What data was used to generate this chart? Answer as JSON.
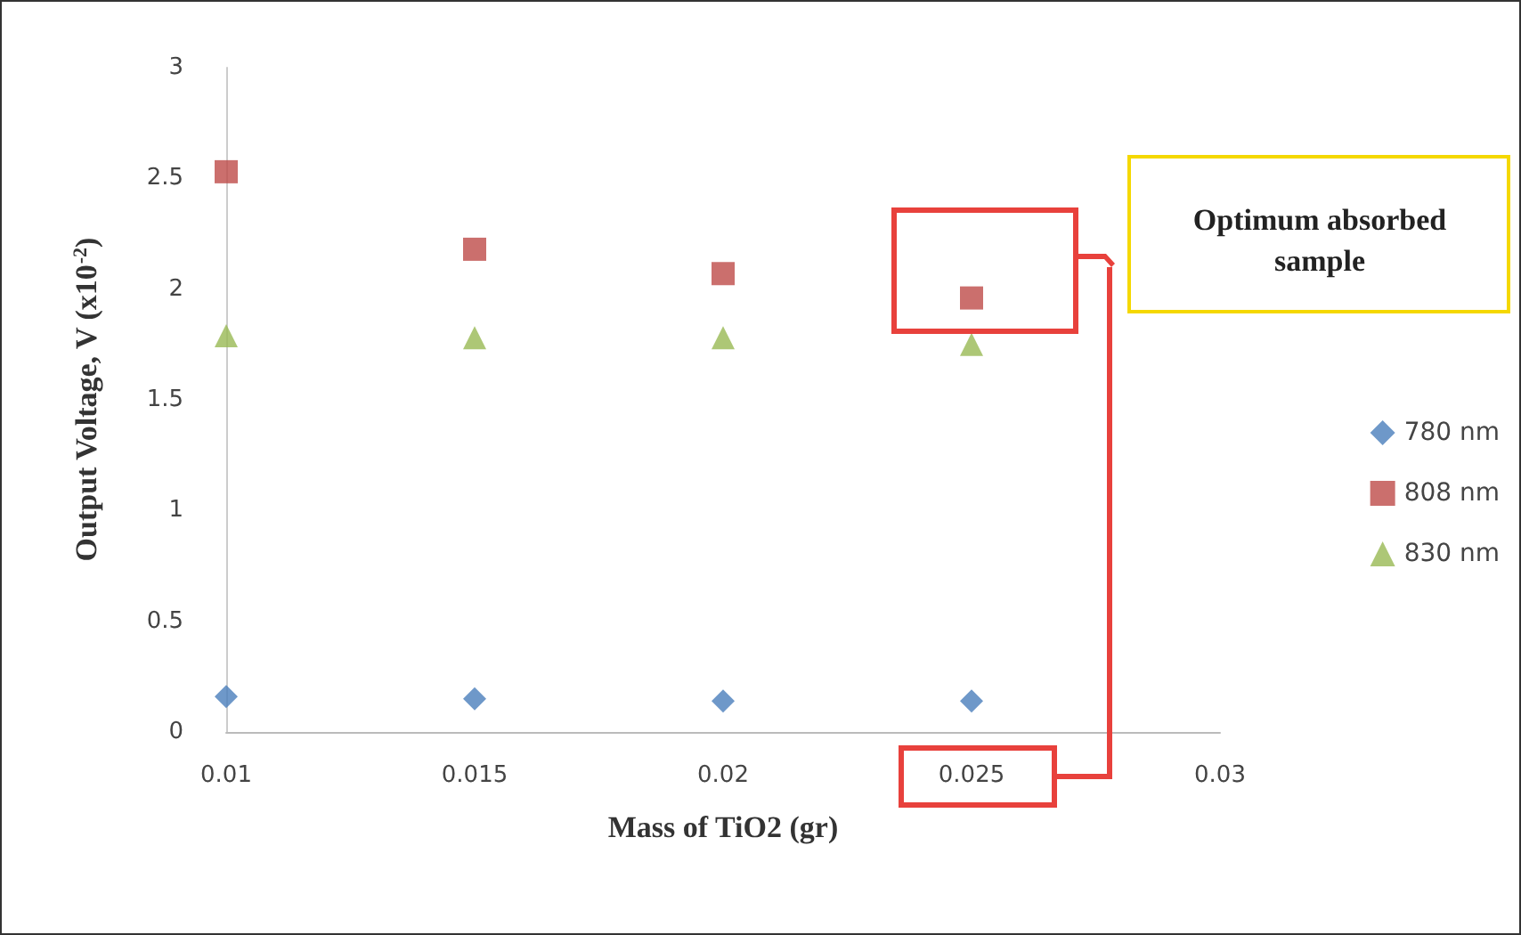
{
  "chart_data": {
    "type": "scatter",
    "xlabel": "Mass of TiO2 (gr)",
    "ylabel": "Output Voltage, V (x10$^{-2}$)",
    "x": [
      0.01,
      0.015,
      0.02,
      0.025
    ],
    "series": [
      {
        "name": "780 nm",
        "color": "#4a7ebb",
        "marker": "diamond",
        "values": [
          0.16,
          0.15,
          0.14,
          0.14
        ]
      },
      {
        "name": "808 nm",
        "color": "#be4b48",
        "marker": "square",
        "values": [
          2.53,
          2.18,
          2.07,
          1.96
        ]
      },
      {
        "name": "830 nm",
        "color": "#98b954",
        "marker": "triangle",
        "values": [
          1.79,
          1.78,
          1.78,
          1.75
        ]
      }
    ],
    "xlim": [
      0.01,
      0.03
    ],
    "xticks": [
      0.01,
      0.015,
      0.02,
      0.025,
      0.03
    ],
    "ylim": [
      0,
      3
    ],
    "yticks": [
      0,
      0.5,
      1,
      1.5,
      2,
      2.5,
      3
    ],
    "grid": false,
    "legend": "right",
    "annotations": [
      "Optimum absorbed sample"
    ]
  }
}
